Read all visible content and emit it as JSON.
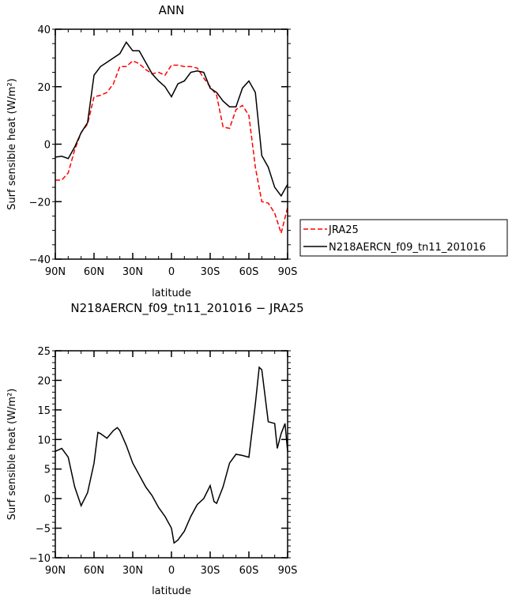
{
  "chart_data": [
    {
      "type": "line",
      "title": "ANN",
      "xlabel": "latitude",
      "ylabel": "Surf sensible heat (W/m²)",
      "xlim": [
        90,
        -90
      ],
      "ylim": [
        -40,
        40
      ],
      "xticks": [
        90,
        60,
        30,
        0,
        -30,
        -60,
        -90
      ],
      "xtick_labels": [
        "90N",
        "60N",
        "30N",
        "0",
        "30S",
        "60S",
        "90S"
      ],
      "yticks": [
        -40,
        -20,
        0,
        20,
        40
      ],
      "ytick_labels": [
        "−40",
        "−20",
        "0",
        "20",
        "40"
      ],
      "legend_placement": "right",
      "x": [
        90,
        85,
        80,
        75,
        70,
        65,
        60,
        55,
        50,
        45,
        40,
        35,
        30,
        25,
        20,
        15,
        10,
        5,
        0,
        -5,
        -10,
        -15,
        -20,
        -25,
        -30,
        -35,
        -40,
        -45,
        -50,
        -55,
        -60,
        -65,
        -70,
        -75,
        -80,
        -85,
        -90
      ],
      "series": [
        {
          "name": "JRA25",
          "color": "#ff0000",
          "dash": "dashed",
          "values": [
            -12.5,
            -12.5,
            -10,
            -2,
            4,
            7,
            16.5,
            17,
            18,
            21,
            27,
            27,
            29,
            28,
            26,
            24.5,
            25,
            24,
            27.5,
            27.5,
            27,
            27,
            26.5,
            23,
            20,
            17,
            6,
            5.5,
            12,
            13.5,
            10,
            -8,
            -20,
            -20.5,
            -24,
            -31,
            -22
          ]
        },
        {
          "name": "N218AERCN_f09_tn11_201016",
          "color": "#000000",
          "dash": "solid",
          "values": [
            -4.5,
            -4.2,
            -5,
            -1,
            4,
            7.5,
            24,
            27,
            28.5,
            30,
            31.5,
            35.5,
            32.5,
            32.5,
            28.5,
            24.5,
            22,
            20,
            16.5,
            21,
            22,
            25,
            25.5,
            25,
            19.5,
            18,
            15,
            13,
            13,
            19.5,
            22,
            18,
            -4,
            -8,
            -15,
            -18,
            -14
          ]
        }
      ]
    },
    {
      "type": "line",
      "title": "N218AERCN_f09_tn11_201016 − JRA25",
      "xlabel": "latitude",
      "ylabel": "Surf sensible heat (W/m²)",
      "xlim": [
        90,
        -90
      ],
      "ylim": [
        -10,
        25
      ],
      "xticks": [
        90,
        60,
        30,
        0,
        -30,
        -60,
        -90
      ],
      "xtick_labels": [
        "90N",
        "60N",
        "30N",
        "0",
        "30S",
        "60S",
        "90S"
      ],
      "yticks": [
        -10,
        -5,
        0,
        5,
        10,
        15,
        20,
        25
      ],
      "ytick_labels": [
        "−10",
        "−5",
        "0",
        "5",
        "10",
        "15",
        "20",
        "25"
      ],
      "x": [
        90,
        85,
        80,
        75,
        70,
        65,
        60,
        57,
        55,
        50,
        45,
        42,
        40,
        35,
        30,
        25,
        20,
        15,
        10,
        5,
        0,
        -2,
        -5,
        -10,
        -15,
        -20,
        -25,
        -30,
        -33,
        -35,
        -40,
        -45,
        -50,
        -55,
        -60,
        -65,
        -68,
        -70,
        -75,
        -80,
        -82,
        -85,
        -88,
        -90
      ],
      "series": [
        {
          "name": "difference",
          "color": "#000000",
          "values": [
            8,
            8.5,
            7,
            2,
            -1.2,
            1,
            6,
            11.2,
            11,
            10.2,
            11.5,
            12,
            11.5,
            9,
            6,
            4,
            2,
            0.5,
            -1.5,
            -3,
            -5,
            -7.5,
            -7,
            -5.5,
            -3,
            -1,
            0,
            2.2,
            -0.5,
            -0.8,
            2,
            6,
            7.5,
            7.3,
            7,
            16,
            22.2,
            21.8,
            13,
            12.7,
            8.5,
            11,
            12.7,
            8
          ]
        }
      ]
    }
  ]
}
